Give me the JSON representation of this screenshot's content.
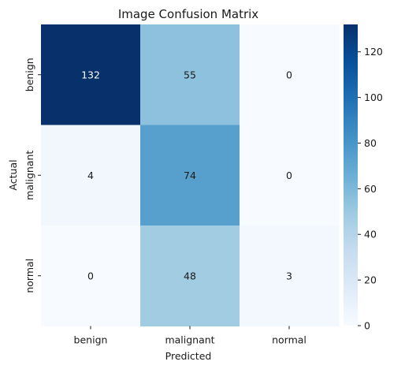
{
  "chart_data": {
    "type": "heatmap",
    "title": "Image Confusion Matrix",
    "xlabel": "Predicted",
    "ylabel": "Actual",
    "x_categories": [
      "benign",
      "malignant",
      "normal"
    ],
    "y_categories": [
      "benign",
      "malignant",
      "normal"
    ],
    "values": [
      [
        132,
        55,
        0
      ],
      [
        4,
        74,
        0
      ],
      [
        0,
        48,
        3
      ]
    ],
    "colorbar": {
      "min": 0,
      "max": 132,
      "ticks": [
        0,
        20,
        40,
        60,
        80,
        100,
        120
      ],
      "colormap": "Blues"
    },
    "grid": false,
    "legend": "none"
  }
}
